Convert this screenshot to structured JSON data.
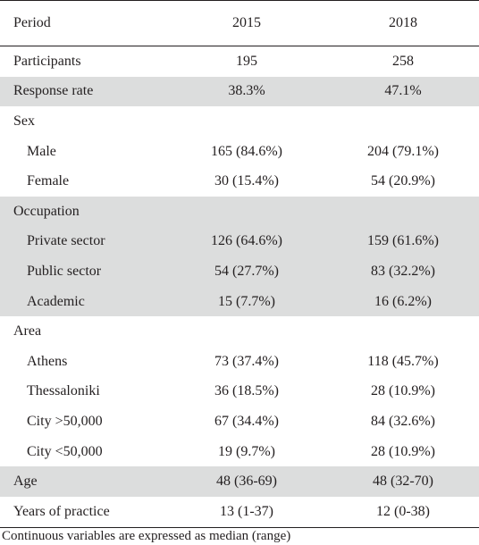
{
  "table": {
    "headers": [
      "Period",
      "2015",
      "2018"
    ],
    "rows": [
      {
        "label": "Participants",
        "v2015": "195",
        "v2018": "258",
        "indent": 0,
        "shaded": false
      },
      {
        "label": "Response rate",
        "v2015": "38.3%",
        "v2018": "47.1%",
        "indent": 0,
        "shaded": true
      },
      {
        "label": "Sex",
        "v2015": "",
        "v2018": "",
        "indent": 0,
        "shaded": false
      },
      {
        "label": "Male",
        "v2015": "165 (84.6%)",
        "v2018": "204 (79.1%)",
        "indent": 1,
        "shaded": false
      },
      {
        "label": "Female",
        "v2015": "30 (15.4%)",
        "v2018": "54 (20.9%)",
        "indent": 1,
        "shaded": false
      },
      {
        "label": "Occupation",
        "v2015": "",
        "v2018": "",
        "indent": 0,
        "shaded": true
      },
      {
        "label": "Private sector",
        "v2015": "126 (64.6%)",
        "v2018": "159 (61.6%)",
        "indent": 1,
        "shaded": true
      },
      {
        "label": "Public sector",
        "v2015": "54 (27.7%)",
        "v2018": "83 (32.2%)",
        "indent": 1,
        "shaded": true
      },
      {
        "label": "Academic",
        "v2015": "15 (7.7%)",
        "v2018": "16 (6.2%)",
        "indent": 1,
        "shaded": true
      },
      {
        "label": "Area",
        "v2015": "",
        "v2018": "",
        "indent": 0,
        "shaded": false
      },
      {
        "label": "Athens",
        "v2015": "73 (37.4%)",
        "v2018": "118 (45.7%)",
        "indent": 1,
        "shaded": false
      },
      {
        "label": "Thessaloniki",
        "v2015": "36 (18.5%)",
        "v2018": "28 (10.9%)",
        "indent": 1,
        "shaded": false
      },
      {
        "label": "City >50,000",
        "v2015": "67 (34.4%)",
        "v2018": "84 (32.6%)",
        "indent": 1,
        "shaded": false
      },
      {
        "label": "City <50,000",
        "v2015": "19 (9.7%)",
        "v2018": "28 (10.9%)",
        "indent": 1,
        "shaded": false
      },
      {
        "label": "Age",
        "v2015": "48 (36-69)",
        "v2018": "48 (32-70)",
        "indent": 0,
        "shaded": true
      },
      {
        "label": "Years of practice",
        "v2015": "13 (1-37)",
        "v2018": "12 (0-38)",
        "indent": 0,
        "shaded": false
      }
    ]
  },
  "footnote": "Continuous variables are expressed as median (range)",
  "colors": {
    "shade": "#dcdddd",
    "text": "#231f20",
    "rule": "#231f20"
  }
}
